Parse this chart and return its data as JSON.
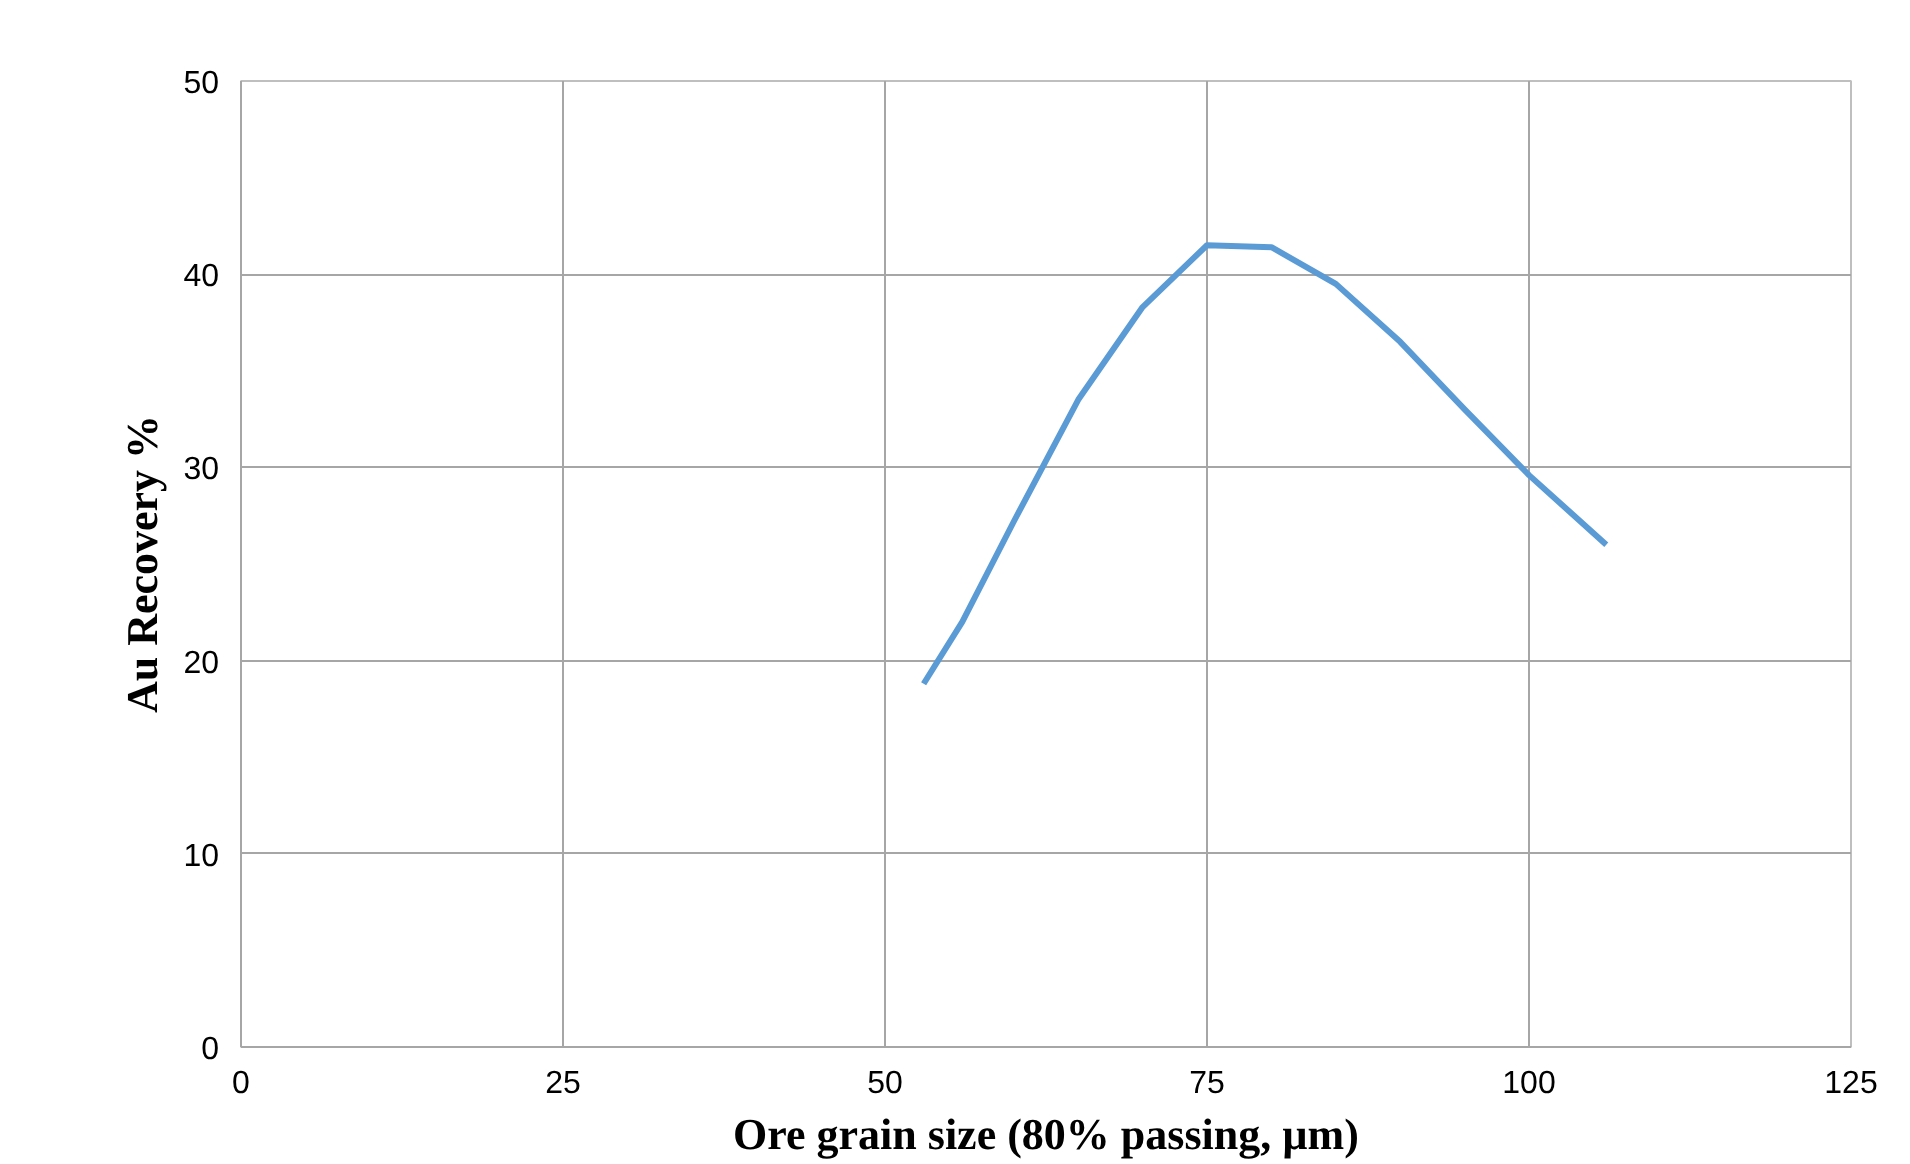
{
  "chart_data": {
    "type": "line",
    "xlabel": "Ore grain size (80% passing, µm)",
    "ylabel": "Au Recovery %",
    "x": [
      53,
      56,
      60,
      65,
      70,
      75,
      80,
      85,
      90,
      95,
      100,
      106
    ],
    "series": [
      {
        "color": "#5b9bd5",
        "values": [
          18.8,
          22,
          27.2,
          33.5,
          38.3,
          41.5,
          41.4,
          39.5,
          36.5,
          33,
          29.6,
          26
        ]
      }
    ],
    "xlim": [
      0,
      125
    ],
    "xticks": [
      0,
      25,
      50,
      75,
      100,
      125
    ],
    "ylim": [
      0,
      50
    ],
    "yticks": [
      0,
      10,
      20,
      30,
      40,
      50
    ],
    "grid": true,
    "marker": "none",
    "line_style": "solid"
  }
}
